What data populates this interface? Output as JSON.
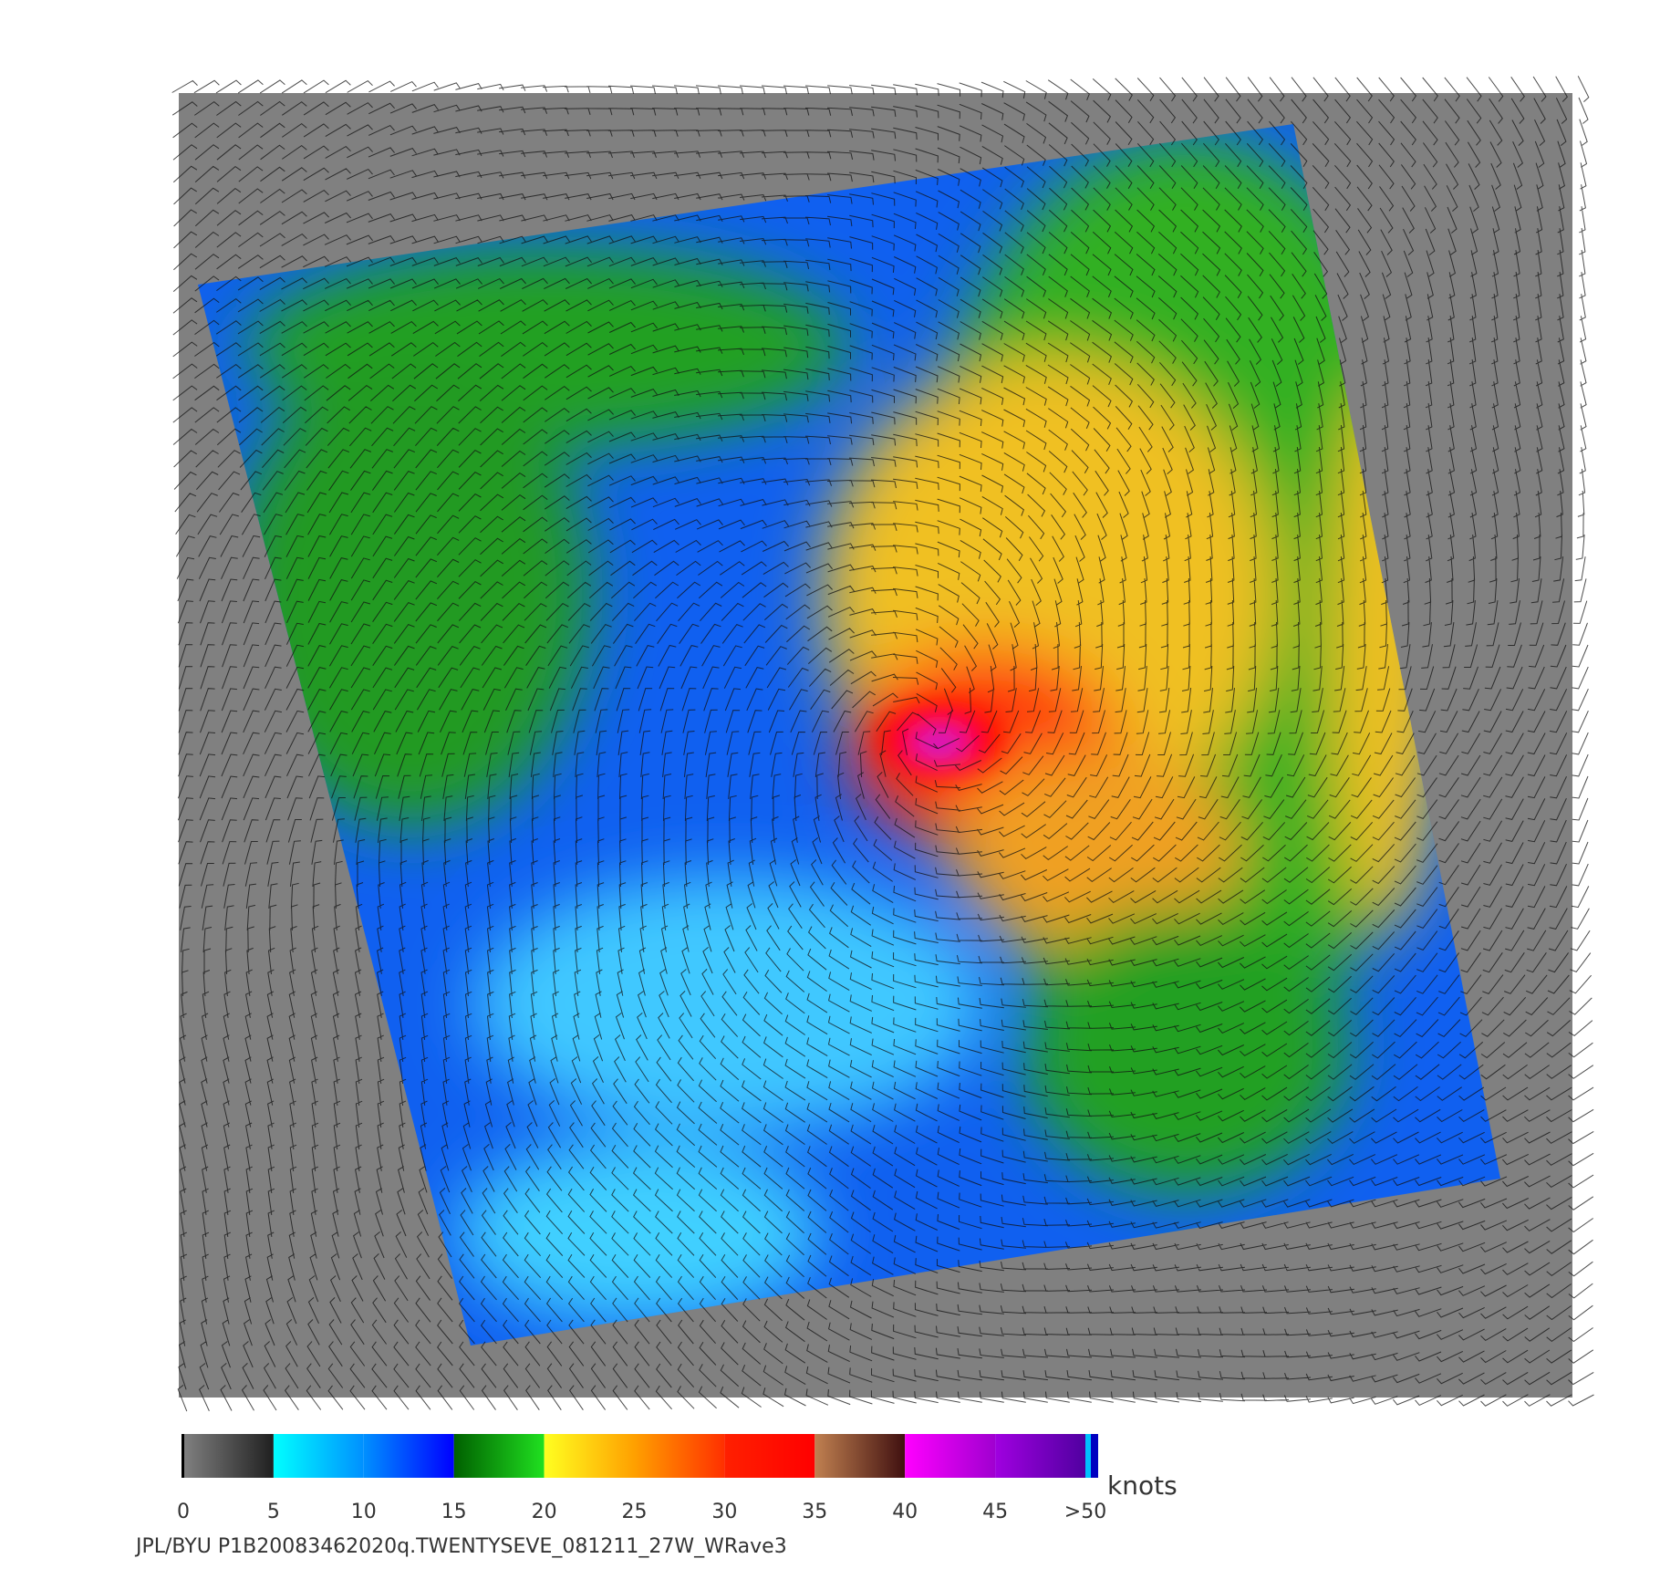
{
  "colorbar": {
    "range": [
      0,
      50
    ],
    "ticks": [
      0,
      5,
      10,
      15,
      20,
      25,
      30,
      35,
      40,
      45,
      {
        "value": 50,
        "label": ">50"
      }
    ],
    "unit": "knots",
    "colors": [
      [
        "#808080",
        "#202020"
      ],
      [
        "#00ffff",
        "#0090ff"
      ],
      [
        "#0090ff",
        "#0000ff"
      ],
      [
        "#006000",
        "#20e020"
      ],
      [
        "#ffff20",
        "#ffa000"
      ],
      [
        "#ffa000",
        "#ff3000"
      ],
      [
        "#ff2000",
        "#ff0000"
      ],
      [
        "#c08050",
        "#401010"
      ],
      [
        "#ff00ff",
        "#a000d0"
      ],
      [
        "#a000e0",
        "#5000a0"
      ]
    ]
  },
  "footer": "JPL/BYU  P1B20083462020q.TWENTYSEVE_081211_27W_WRave3"
}
